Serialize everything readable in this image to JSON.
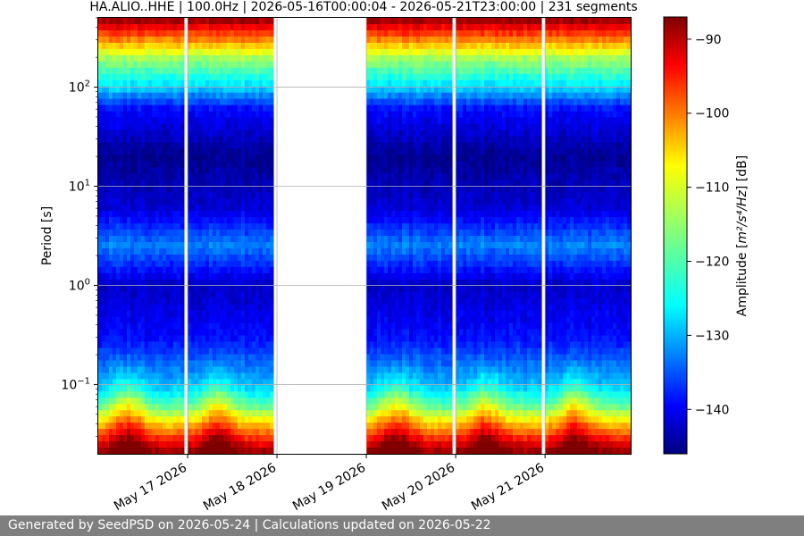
{
  "chart_data": {
    "type": "heatmap",
    "title": "HA.ALIO..HHE | 100.0Hz | 2026-05-16T00:00:04 - 2026-05-21T23:00:00 | 231 segments",
    "ylabel": "Period [s]",
    "y_scale": "log",
    "y_axis_inverted": true,
    "ylim": [
      0.02,
      500
    ],
    "xlim": [
      "2026-05-16T00:00:00",
      "2026-05-21T23:00:00"
    ],
    "x_ticks": [
      {
        "date": "2026-05-17",
        "label": "May 17 2026"
      },
      {
        "date": "2026-05-18",
        "label": "May 18 2026"
      },
      {
        "date": "2026-05-19",
        "label": "May 19 2026"
      },
      {
        "date": "2026-05-20",
        "label": "May 20 2026"
      },
      {
        "date": "2026-05-21",
        "label": "May 21 2026"
      }
    ],
    "y_ticks": [
      {
        "value": 0.1,
        "base": "10",
        "exp": "−1"
      },
      {
        "value": 1,
        "base": "10",
        "exp": "0"
      },
      {
        "value": 10,
        "base": "10",
        "exp": "1"
      },
      {
        "value": 100,
        "base": "10",
        "exp": "2"
      }
    ],
    "grid": true,
    "colormap": "jet",
    "colorbar": {
      "label_prefix": "Amplitude [",
      "label_unit": "m²/s⁴/Hz",
      "label_suffix": "] [dB]",
      "range": [
        -146,
        -87
      ],
      "ticks": [
        -90,
        -100,
        -110,
        -120,
        -130,
        -140
      ]
    },
    "data_segments": [
      {
        "start": "2026-05-16T00:00:00",
        "end": "2026-05-16T23:00:00"
      },
      {
        "start": "2026-05-17T00:00:00",
        "end": "2026-05-17T23:00:00"
      },
      {
        "start": "2026-05-19T00:00:00",
        "end": "2026-05-19T23:00:00"
      },
      {
        "start": "2026-05-20T00:00:00",
        "end": "2026-05-20T23:00:00"
      },
      {
        "start": "2026-05-21T00:00:00",
        "end": "2026-05-21T23:00:00"
      }
    ],
    "amplitude_profile_db": [
      {
        "period": 0.02,
        "db": -87
      },
      {
        "period": 0.03,
        "db": -98
      },
      {
        "period": 0.06,
        "db": -118
      },
      {
        "period": 0.1,
        "db": -128
      },
      {
        "period": 0.3,
        "db": -138
      },
      {
        "period": 1.0,
        "db": -142
      },
      {
        "period": 2.5,
        "db": -131
      },
      {
        "period": 6,
        "db": -141
      },
      {
        "period": 20,
        "db": -145
      },
      {
        "period": 60,
        "db": -138
      },
      {
        "period": 100,
        "db": -126
      },
      {
        "period": 200,
        "db": -114
      },
      {
        "period": 300,
        "db": -102
      },
      {
        "period": 500,
        "db": -87
      }
    ]
  },
  "footer": {
    "text": "Generated by SeedPSD on 2026-05-24 | Calculations updated on 2026-05-22"
  }
}
